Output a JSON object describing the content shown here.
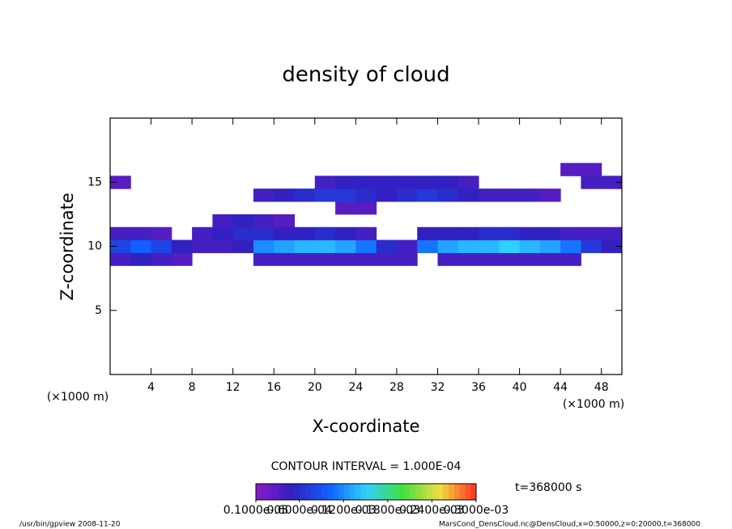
{
  "chart_data": {
    "type": "contour",
    "title": "density of cloud",
    "x_label": "X-coordinate",
    "y_label": "Z-coordinate",
    "x_unit": "(×1000 m)",
    "y_unit": "(×1000 m)",
    "xlim": [
      0,
      50
    ],
    "ylim": [
      0,
      20
    ],
    "xticks": [
      4,
      8,
      12,
      16,
      20,
      24,
      28,
      32,
      36,
      40,
      44,
      48
    ],
    "yticks": [
      5,
      10,
      15
    ],
    "x": [
      1,
      3,
      5,
      7,
      9,
      11,
      13,
      15,
      17,
      19,
      21,
      23,
      25,
      27,
      29,
      31,
      33,
      35,
      37,
      39,
      41,
      43,
      45,
      47,
      49
    ],
    "z": [
      9,
      10,
      11,
      12,
      13,
      14,
      15,
      16
    ],
    "values": [
      [
        4e-05,
        5e-05,
        4e-05,
        3e-05,
        null,
        null,
        null,
        4e-05,
        4e-05,
        4e-05,
        4e-05,
        4e-05,
        4e-05,
        4e-05,
        4e-05,
        null,
        4e-05,
        4e-05,
        4e-05,
        4e-05,
        4e-05,
        4e-05,
        4e-05,
        null,
        null
      ],
      [
        8e-05,
        0.0001,
        8e-05,
        5e-05,
        4e-05,
        4e-05,
        5e-05,
        0.00012,
        0.00013,
        0.00014,
        0.00014,
        0.00013,
        0.00011,
        6e-05,
        4e-05,
        0.00011,
        0.00013,
        0.00014,
        0.00014,
        0.00015,
        0.00014,
        0.00013,
        0.00011,
        7e-05,
        5e-05
      ],
      [
        4e-05,
        4e-05,
        3e-05,
        null,
        4e-05,
        5e-05,
        6e-05,
        6e-05,
        5e-05,
        5e-05,
        6e-05,
        5e-05,
        4e-05,
        null,
        null,
        5e-05,
        5e-05,
        5e-05,
        6e-05,
        6e-05,
        5e-05,
        5e-05,
        4e-05,
        4e-05,
        4e-05
      ],
      [
        null,
        null,
        null,
        null,
        null,
        4e-05,
        5e-05,
        4e-05,
        3e-05,
        null,
        null,
        null,
        null,
        null,
        null,
        null,
        null,
        null,
        null,
        null,
        null,
        null,
        null,
        null,
        null
      ],
      [
        null,
        null,
        null,
        null,
        null,
        null,
        null,
        null,
        null,
        null,
        null,
        3e-05,
        3e-05,
        null,
        null,
        null,
        null,
        null,
        null,
        null,
        null,
        null,
        null,
        null,
        null
      ],
      [
        null,
        null,
        null,
        null,
        null,
        null,
        null,
        4e-05,
        5e-05,
        6e-05,
        7e-05,
        7e-05,
        6e-05,
        5e-05,
        6e-05,
        7e-05,
        6e-05,
        5e-05,
        4e-05,
        4e-05,
        4e-05,
        3e-05,
        null,
        null,
        null
      ],
      [
        3e-05,
        null,
        null,
        null,
        null,
        null,
        null,
        null,
        null,
        null,
        4e-05,
        5e-05,
        5e-05,
        5e-05,
        5e-05,
        5e-05,
        5e-05,
        4e-05,
        null,
        null,
        null,
        null,
        null,
        4e-05,
        4e-05
      ],
      [
        null,
        null,
        null,
        null,
        null,
        null,
        null,
        null,
        null,
        null,
        null,
        null,
        null,
        null,
        null,
        null,
        null,
        null,
        null,
        null,
        null,
        null,
        3e-05,
        3e-05,
        null
      ]
    ],
    "colormap": [
      "#8a1ac8",
      "#3020c0",
      "#1060ff",
      "#30d0ff",
      "#40e040",
      "#f0e040",
      "#ff3020"
    ],
    "clim": [
      1e-06,
      0.0003
    ],
    "colorbar_ticks": [
      {
        "value": 1e-06,
        "label": "0.1000e-05"
      },
      {
        "value": 6e-05,
        "label": "0.6000e-04"
      },
      {
        "value": 0.00012,
        "label": "0.1200e-03"
      },
      {
        "value": 0.00018,
        "label": "0.1800e-03"
      },
      {
        "value": 0.00024,
        "label": "0.2400e-03"
      },
      {
        "value": 0.0003,
        "label": "0.3000e-03"
      }
    ],
    "contour_interval": "CONTOUR INTERVAL = 1.000E-04",
    "time_label": "t=368000 s",
    "footer_left": "/usr/bin/gpview   2008-11-20",
    "footer_right": "MarsCond_DensCloud.nc@DensCloud,x=0:50000,z=0:20000,t=368000"
  }
}
